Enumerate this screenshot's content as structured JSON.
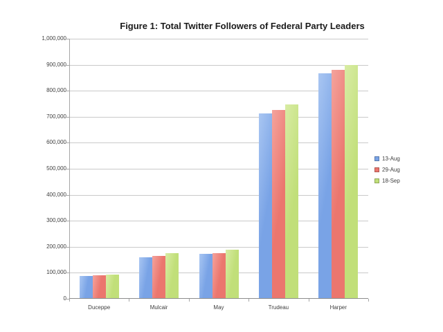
{
  "chart_data": {
    "type": "bar",
    "title": "Figure 1: Total Twitter Followers of Federal Party Leaders",
    "categories": [
      "Duceppe",
      "Mulcair",
      "May",
      "Trudeau",
      "Harper"
    ],
    "series": [
      {
        "name": "13-Aug",
        "color": "#79A3E6",
        "color_light": "#A9C6F2",
        "values": [
          86000,
          156000,
          169000,
          710000,
          865000
        ]
      },
      {
        "name": "29-Aug",
        "color": "#EB766E",
        "color_light": "#F4A39C",
        "values": [
          88000,
          163000,
          173000,
          724000,
          877000
        ]
      },
      {
        "name": "18-Sep",
        "color": "#C1DF79",
        "color_light": "#D8ECA4",
        "values": [
          90000,
          174000,
          187000,
          746000,
          895000
        ]
      }
    ],
    "xlabel": "",
    "ylabel": "",
    "ylim": [
      0,
      1000000
    ],
    "ytick_step": 100000,
    "ytick_labels": [
      "0",
      "100,000",
      "200,000",
      "300,000",
      "400,000",
      "500,000",
      "600,000",
      "700,000",
      "800,000",
      "900,000",
      "1,000,000"
    ],
    "grid": true,
    "legend_position": "right-middle"
  },
  "colors": {
    "background": "#ffffff",
    "gridline": "#c9c9c9",
    "axis_line": "#8c8c8c",
    "label_text": "#3f3f3f",
    "title_text": "#1a1a1a"
  }
}
